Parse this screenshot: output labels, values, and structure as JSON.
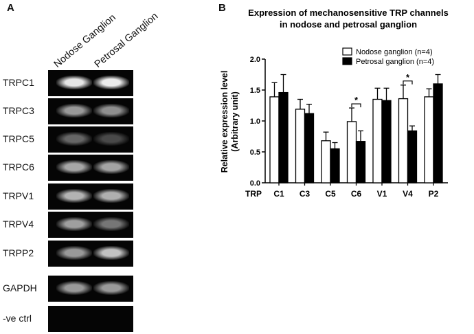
{
  "panel_a": {
    "letter": "A",
    "lane_labels": [
      "Nodose Ganglion",
      "Petrosal Ganglion"
    ],
    "rows": [
      {
        "label": "TRPC1",
        "band_intensity": [
          0.92,
          0.95
        ]
      },
      {
        "label": "TRPC3",
        "band_intensity": [
          0.55,
          0.5
        ]
      },
      {
        "label": "TRPC5",
        "band_intensity": [
          0.3,
          0.16
        ]
      },
      {
        "label": "TRPC6",
        "band_intensity": [
          0.62,
          0.6
        ]
      },
      {
        "label": "TRPV1",
        "band_intensity": [
          0.68,
          0.66
        ]
      },
      {
        "label": "TRPV4",
        "band_intensity": [
          0.58,
          0.38
        ]
      },
      {
        "label": "TRPP2",
        "band_intensity": [
          0.55,
          0.75
        ]
      },
      {
        "label": "GAPDH",
        "band_intensity": [
          0.55,
          0.55
        ]
      },
      {
        "label": "-ve ctrl",
        "band_intensity": [
          0,
          0
        ]
      }
    ]
  },
  "panel_b": {
    "letter": "B"
  },
  "chart_data": {
    "type": "bar",
    "title": "Expression of mechanosensitive TRP channels in nodose and petrosal ganglion",
    "title_lines": [
      "Expression of mechanosensitive TRP channels",
      "in nodose and petrosal ganglion"
    ],
    "xlabel": "TRP",
    "ylabel": "Relative expression level (Arbitrary unit)",
    "ylabel_lines": [
      "Relative expression level",
      "(Arbitrary unit)"
    ],
    "categories": [
      "C1",
      "C3",
      "C5",
      "C6",
      "V1",
      "V4",
      "P2"
    ],
    "series": [
      {
        "name": "Nodose ganglion (n=4)",
        "color": "#ffffff",
        "values": [
          1.39,
          1.19,
          0.68,
          0.99,
          1.35,
          1.36,
          1.39
        ],
        "errors": [
          0.23,
          0.16,
          0.14,
          0.22,
          0.18,
          0.22,
          0.13
        ]
      },
      {
        "name": "Petrosal ganglion (n=4)",
        "color": "#000000",
        "values": [
          1.46,
          1.12,
          0.55,
          0.67,
          1.33,
          0.84,
          1.6
        ],
        "errors": [
          0.29,
          0.15,
          0.1,
          0.17,
          0.2,
          0.08,
          0.15
        ]
      }
    ],
    "ylim": [
      0,
      2.0
    ],
    "yticks": [
      "0.0",
      "0.5",
      "1.0",
      "1.5",
      "2.0"
    ],
    "significance": [
      {
        "category": "C6",
        "label": "*"
      },
      {
        "category": "V4",
        "label": "*"
      }
    ],
    "legend_position": "top-right",
    "grid": false
  }
}
